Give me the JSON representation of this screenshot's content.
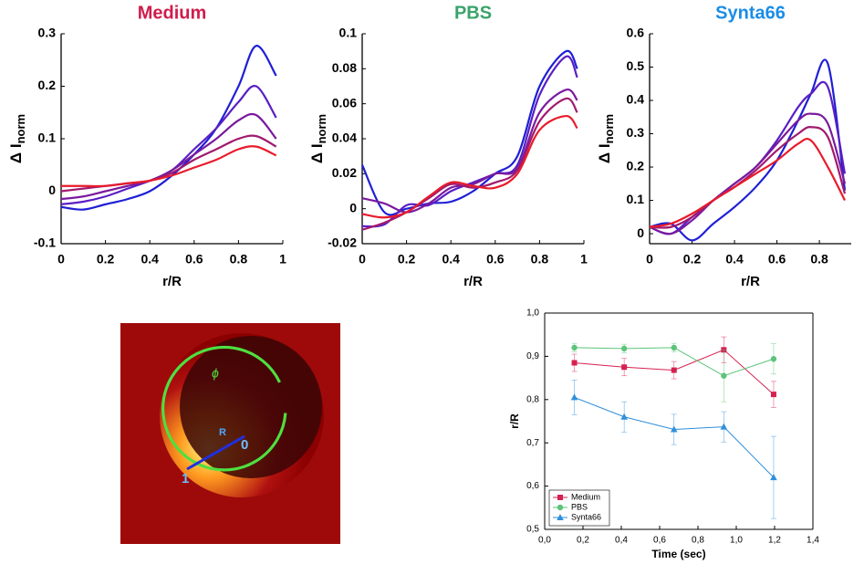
{
  "chart_data": [
    {
      "type": "line",
      "title": "Medium",
      "title_color": "#d01c4b",
      "ylabel": "Δ I",
      "ylabel_sub": "norm",
      "xlabel": "r/R",
      "x": [
        0,
        0.1,
        0.2,
        0.3,
        0.4,
        0.5,
        0.6,
        0.7,
        0.8,
        0.88,
        0.97
      ],
      "series": [
        {
          "color": "#1f1fd6",
          "values": [
            -0.03,
            -0.035,
            -0.025,
            -0.015,
            0,
            0.03,
            0.07,
            0.12,
            0.2,
            0.277,
            0.22
          ]
        },
        {
          "color": "#5a1fc4",
          "values": [
            -0.025,
            -0.02,
            -0.01,
            0.005,
            0.02,
            0.04,
            0.08,
            0.12,
            0.17,
            0.2,
            0.14
          ]
        },
        {
          "color": "#7a1a9e",
          "values": [
            -0.015,
            -0.01,
            0,
            0.01,
            0.02,
            0.04,
            0.07,
            0.1,
            0.135,
            0.145,
            0.1
          ]
        },
        {
          "color": "#a01a6e",
          "values": [
            0,
            0.005,
            0.01,
            0.015,
            0.02,
            0.035,
            0.06,
            0.08,
            0.1,
            0.105,
            0.085
          ]
        },
        {
          "color": "#e81b2b",
          "values": [
            0.01,
            0.01,
            0.01,
            0.015,
            0.02,
            0.03,
            0.045,
            0.06,
            0.08,
            0.085,
            0.068
          ]
        }
      ],
      "xlim": [
        0,
        1
      ],
      "xticks": [
        0,
        0.2,
        0.4,
        0.6,
        0.8,
        1
      ],
      "ylim": [
        -0.1,
        0.3
      ],
      "yticks": [
        -0.1,
        0,
        0.1,
        0.2,
        0.3
      ]
    },
    {
      "type": "line",
      "title": "PBS",
      "title_color": "#3aa46a",
      "ylabel": "Δ I",
      "ylabel_sub": "norm",
      "xlabel": "r/R",
      "x": [
        0,
        0.1,
        0.2,
        0.3,
        0.4,
        0.5,
        0.6,
        0.7,
        0.8,
        0.92,
        0.97
      ],
      "series": [
        {
          "color": "#1f1fd6",
          "values": [
            0.025,
            -0.002,
            0,
            0.003,
            0.004,
            0.01,
            0.02,
            0.03,
            0.07,
            0.09,
            0.08
          ]
        },
        {
          "color": "#5a1fc4",
          "values": [
            -0.01,
            -0.009,
            0.002,
            0.002,
            0.01,
            0.015,
            0.02,
            0.025,
            0.065,
            0.087,
            0.075
          ]
        },
        {
          "color": "#7a1a9e",
          "values": [
            0.006,
            0.003,
            -0.002,
            0.003,
            0.012,
            0.014,
            0.02,
            0.023,
            0.055,
            0.068,
            0.062
          ]
        },
        {
          "color": "#a01a6e",
          "values": [
            -0.012,
            -0.008,
            -0.002,
            0.006,
            0.014,
            0.012,
            0.015,
            0.022,
            0.05,
            0.063,
            0.055
          ]
        },
        {
          "color": "#e81b2b",
          "values": [
            -0.003,
            -0.005,
            -0.002,
            0.007,
            0.015,
            0.013,
            0.012,
            0.02,
            0.045,
            0.053,
            0.046
          ]
        }
      ],
      "xlim": [
        0,
        1
      ],
      "xticks": [
        0,
        0.2,
        0.4,
        0.6,
        0.8,
        1
      ],
      "ylim": [
        -0.02,
        0.1
      ],
      "yticks": [
        -0.02,
        0,
        0.02,
        0.04,
        0.06,
        0.08,
        0.1
      ]
    },
    {
      "type": "line",
      "title": "Synta66",
      "title_color": "#1a8de6",
      "ylabel": "Δ I",
      "ylabel_sub": "norm",
      "xlabel": "r/R",
      "x": [
        0,
        0.1,
        0.2,
        0.3,
        0.4,
        0.5,
        0.6,
        0.7,
        0.76,
        0.84,
        0.92
      ],
      "series": [
        {
          "color": "#1f1fd6",
          "values": [
            0.02,
            0.03,
            -0.02,
            0.03,
            0.08,
            0.14,
            0.22,
            0.34,
            0.42,
            0.51,
            0.13
          ]
        },
        {
          "color": "#5a1fc4",
          "values": [
            0.02,
            0,
            0.05,
            0.1,
            0.15,
            0.2,
            0.28,
            0.38,
            0.42,
            0.44,
            0.18
          ]
        },
        {
          "color": "#7a1a9e",
          "values": [
            0.02,
            0,
            0.04,
            0.1,
            0.15,
            0.2,
            0.27,
            0.34,
            0.36,
            0.33,
            0.15
          ]
        },
        {
          "color": "#a01a6e",
          "values": [
            0.02,
            0.02,
            0.05,
            0.1,
            0.14,
            0.19,
            0.25,
            0.3,
            0.32,
            0.29,
            0.12
          ]
        },
        {
          "color": "#e81b2b",
          "values": [
            0.02,
            0.03,
            0.06,
            0.1,
            0.14,
            0.18,
            0.22,
            0.27,
            0.28,
            0.2,
            0.1
          ]
        }
      ],
      "xlim": [
        0,
        0.95
      ],
      "xticks": [
        0,
        0.2,
        0.4,
        0.6,
        0.8
      ],
      "ylim": [
        -0.03,
        0.6
      ],
      "yticks": [
        0,
        0.1,
        0.2,
        0.3,
        0.4,
        0.5,
        0.6
      ]
    },
    {
      "type": "errorline",
      "xlabel": "Time (sec)",
      "ylabel": "r/R",
      "legend": "lower left",
      "x": [
        0.155,
        0.415,
        0.675,
        0.935,
        1.195
      ],
      "series": [
        {
          "name": "Medium",
          "color": "#d62050",
          "marker": "square",
          "values": [
            0.885,
            0.875,
            0.868,
            0.915,
            0.812
          ],
          "errors": [
            0.02,
            0.02,
            0.02,
            0.03,
            0.03
          ]
        },
        {
          "name": "PBS",
          "color": "#5cc47a",
          "marker": "circle",
          "values": [
            0.92,
            0.918,
            0.92,
            0.855,
            0.894
          ],
          "errors": [
            0.01,
            0.01,
            0.01,
            0.06,
            0.035
          ]
        },
        {
          "name": "Synta66",
          "color": "#2f8fdc",
          "marker": "triangle",
          "values": [
            0.805,
            0.76,
            0.731,
            0.737,
            0.62
          ],
          "errors": [
            0.04,
            0.035,
            0.035,
            0.035,
            0.095
          ]
        }
      ],
      "xlim": [
        0,
        1.4
      ],
      "xticks": [
        {
          "value": 0,
          "label": "0,0"
        },
        {
          "value": 0.2,
          "label": "0,2"
        },
        {
          "value": 0.4,
          "label": "0,4"
        },
        {
          "value": 0.6,
          "label": "0,6"
        },
        {
          "value": 0.8,
          "label": "0,8"
        },
        {
          "value": 1,
          "label": "1,0"
        },
        {
          "value": 1.2,
          "label": "1,2"
        },
        {
          "value": 1.4,
          "label": "1,4"
        }
      ],
      "ylim": [
        0.5,
        1
      ],
      "yticks": [
        {
          "value": 0.5,
          "label": "0,5"
        },
        {
          "value": 0.6,
          "label": "0,6"
        },
        {
          "value": 0.7,
          "label": "0,7"
        },
        {
          "value": 0.8,
          "label": "0,8"
        },
        {
          "value": 0.9,
          "label": "0,9"
        },
        {
          "value": 1,
          "label": "1,0"
        }
      ]
    }
  ],
  "image": {
    "labels": {
      "phi": "ϕ",
      "radius": "R",
      "center": "0",
      "edge": "1"
    }
  }
}
